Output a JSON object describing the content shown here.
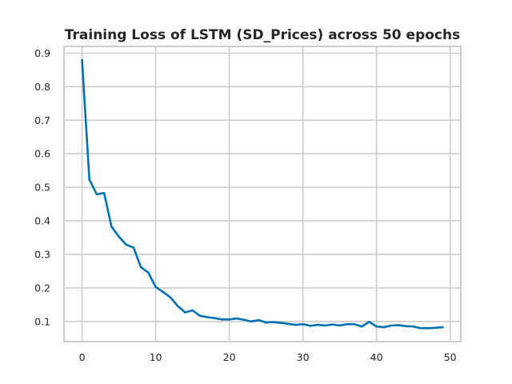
{
  "chart_data": {
    "type": "line",
    "title": "Training Loss of LSTM (SD_Prices) across 50 epochs",
    "xlabel": "",
    "ylabel": "",
    "xlim": [
      -2.45,
      51.45
    ],
    "ylim": [
      0.04,
      0.92
    ],
    "xticks": [
      0,
      10,
      20,
      30,
      40,
      50
    ],
    "xtick_labels": [
      "0",
      "10",
      "20",
      "30",
      "40",
      "50"
    ],
    "yticks": [
      0.1,
      0.2,
      0.3,
      0.4,
      0.5,
      0.6,
      0.7,
      0.8,
      0.9
    ],
    "ytick_labels": [
      "0.1",
      "0.2",
      "0.3",
      "0.4",
      "0.5",
      "0.6",
      "0.7",
      "0.8",
      "0.9"
    ],
    "grid": true,
    "legend": "none",
    "series": [
      {
        "color": "#0072b2",
        "x": [
          0,
          1,
          2,
          3,
          4,
          5,
          6,
          7,
          8,
          9,
          10,
          11,
          12,
          13,
          14,
          15,
          16,
          17,
          18,
          19,
          20,
          21,
          22,
          23,
          24,
          25,
          26,
          27,
          28,
          29,
          30,
          31,
          32,
          33,
          34,
          35,
          36,
          37,
          38,
          39,
          40,
          41,
          42,
          43,
          44,
          45,
          46,
          47,
          48,
          49
        ],
        "values": [
          0.879,
          0.523,
          0.479,
          0.483,
          0.383,
          0.353,
          0.329,
          0.32,
          0.262,
          0.246,
          0.203,
          0.188,
          0.172,
          0.146,
          0.127,
          0.133,
          0.117,
          0.113,
          0.11,
          0.106,
          0.106,
          0.109,
          0.105,
          0.1,
          0.104,
          0.097,
          0.098,
          0.096,
          0.093,
          0.09,
          0.092,
          0.087,
          0.09,
          0.088,
          0.091,
          0.088,
          0.092,
          0.092,
          0.085,
          0.099,
          0.085,
          0.083,
          0.088,
          0.089,
          0.086,
          0.085,
          0.08,
          0.08,
          0.081,
          0.083
        ]
      }
    ]
  }
}
